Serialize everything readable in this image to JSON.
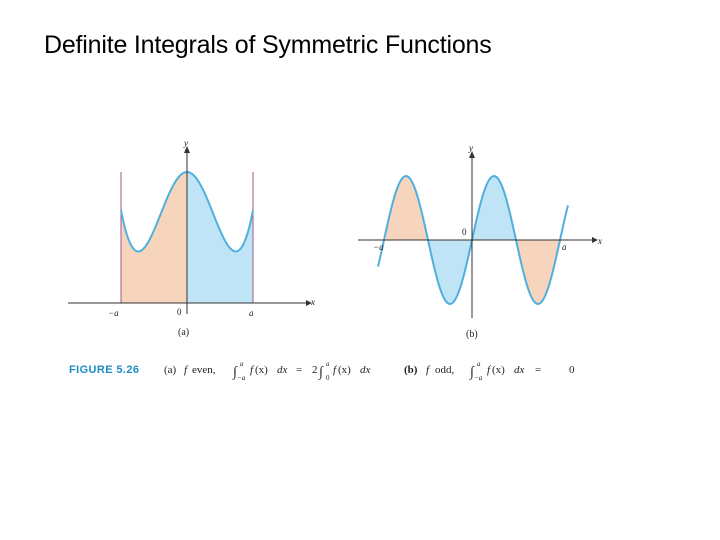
{
  "slide": {
    "title": "Definite Integrals of Symmetric Functions"
  },
  "figure": {
    "tag": "FIGURE 5.26",
    "panel_a": {
      "label": "(a)",
      "x_axis": "x",
      "y_axis": "y",
      "neg_a": "−a",
      "zero": "0",
      "pos_a": "a"
    },
    "panel_b": {
      "label": "(b)",
      "x_axis": "x",
      "y_axis": "y",
      "neg_a": "−a",
      "zero": "0",
      "pos_a": "a"
    },
    "caption": {
      "a_part": "(a)",
      "a_f": "f",
      "a_even": "even,",
      "b_part": "(b)",
      "b_f": "f",
      "b_odd": "odd,"
    },
    "colors": {
      "curve": "#4fb0dd",
      "fill_blue": "#bfe4f6",
      "fill_orange": "#f7d5bd",
      "boundary": "#a05a8a",
      "tag": "#1a8fc4"
    }
  }
}
